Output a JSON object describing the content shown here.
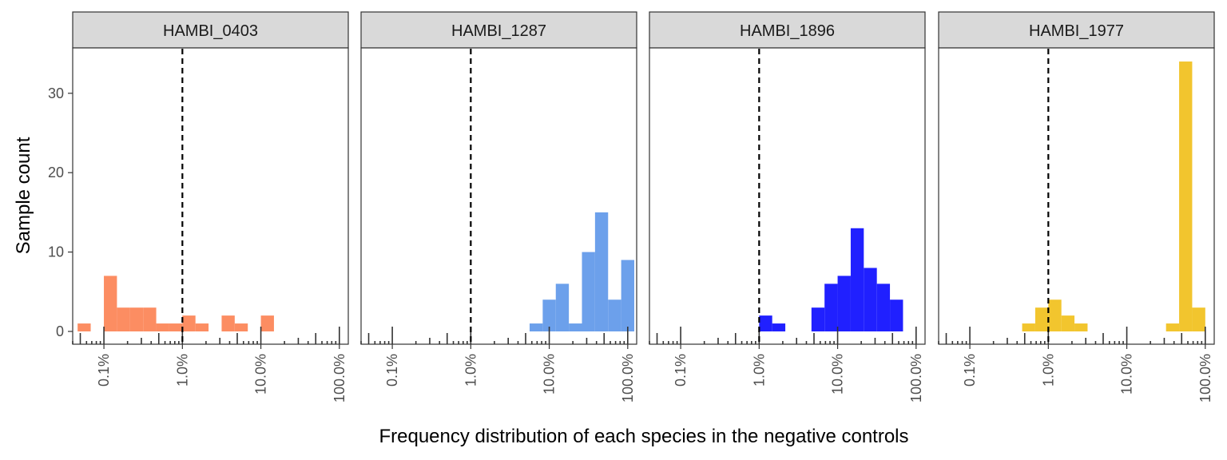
{
  "chart_data": {
    "type": "bar",
    "xlabel": "Frequency distribution of each species in the negative controls",
    "ylabel": "Sample count",
    "x_scale": "log10",
    "xlim": [
      0.0004,
      1.3
    ],
    "ylim": [
      -1.5,
      36
    ],
    "yticks": [
      0,
      10,
      20,
      30
    ],
    "xticks": [
      {
        "value": 0.001,
        "label": "0.1%"
      },
      {
        "value": 0.01,
        "label": "1.0%"
      },
      {
        "value": 0.1,
        "label": "10.0%"
      },
      {
        "value": 1.0,
        "label": "100.0%"
      }
    ],
    "bin_width_log10": 0.1667,
    "reference_line": {
      "x": 0.01,
      "style": "dashed",
      "color": "#000000"
    },
    "grid": false,
    "legend": "none",
    "facets": [
      {
        "name": "HAMBI_0403",
        "color": "#FC8D62",
        "bins": [
          {
            "x": 0.00056,
            "count": 1
          },
          {
            "x": 0.00121,
            "count": 7
          },
          {
            "x": 0.00178,
            "count": 3
          },
          {
            "x": 0.00261,
            "count": 3
          },
          {
            "x": 0.00383,
            "count": 3
          },
          {
            "x": 0.00562,
            "count": 1
          },
          {
            "x": 0.00825,
            "count": 1
          },
          {
            "x": 0.01211,
            "count": 2
          },
          {
            "x": 0.01778,
            "count": 1
          },
          {
            "x": 0.03831,
            "count": 2
          },
          {
            "x": 0.05623,
            "count": 1
          },
          {
            "x": 0.12115,
            "count": 2
          }
        ]
      },
      {
        "name": "HAMBI_1287",
        "color": "#6CA0EB",
        "bins": [
          {
            "x": 0.0681,
            "count": 1
          },
          {
            "x": 0.1,
            "count": 4
          },
          {
            "x": 0.1468,
            "count": 6
          },
          {
            "x": 0.2154,
            "count": 1
          },
          {
            "x": 0.3162,
            "count": 10
          },
          {
            "x": 0.4642,
            "count": 15
          },
          {
            "x": 0.6813,
            "count": 4
          },
          {
            "x": 1.0,
            "count": 9
          }
        ]
      },
      {
        "name": "HAMBI_1896",
        "color": "#2020FF",
        "bins": [
          {
            "x": 0.01211,
            "count": 2
          },
          {
            "x": 0.01778,
            "count": 1
          },
          {
            "x": 0.05623,
            "count": 3
          },
          {
            "x": 0.08254,
            "count": 6
          },
          {
            "x": 0.12115,
            "count": 7
          },
          {
            "x": 0.17783,
            "count": 13
          },
          {
            "x": 0.26102,
            "count": 8
          },
          {
            "x": 0.38312,
            "count": 6
          },
          {
            "x": 0.56234,
            "count": 4
          }
        ]
      },
      {
        "name": "HAMBI_1977",
        "color": "#F2C52E",
        "bins": [
          {
            "x": 0.00562,
            "count": 1
          },
          {
            "x": 0.00825,
            "count": 3
          },
          {
            "x": 0.01211,
            "count": 4
          },
          {
            "x": 0.01778,
            "count": 2
          },
          {
            "x": 0.0261,
            "count": 1
          },
          {
            "x": 0.38312,
            "count": 1
          },
          {
            "x": 0.56234,
            "count": 34
          },
          {
            "x": 0.8254,
            "count": 3
          }
        ]
      }
    ]
  }
}
